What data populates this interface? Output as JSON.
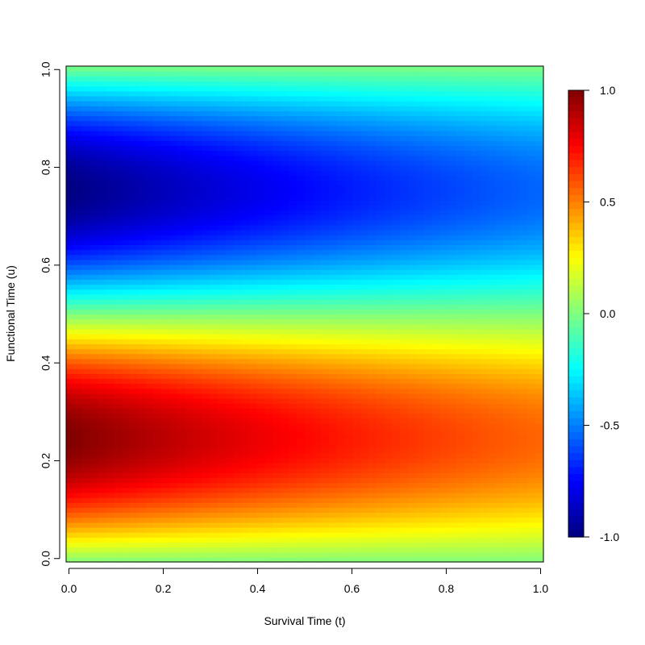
{
  "chart_data": {
    "type": "heatmap",
    "title": "",
    "xlabel": "Survival Time (t)",
    "ylabel": "Functional Time (u)",
    "xlim": [
      0,
      1
    ],
    "ylim": [
      0,
      1
    ],
    "zlim": [
      -1,
      1
    ],
    "x_ticks": [
      "0.0",
      "0.2",
      "0.4",
      "0.6",
      "0.8",
      "1.0"
    ],
    "y_ticks": [
      "0.0",
      "0.2",
      "0.4",
      "0.6",
      "0.8",
      "1.0"
    ],
    "colorbar_ticks": [
      "1.0",
      "0.5",
      "0.0",
      "-0.5",
      "-1.0"
    ],
    "colorbar_values": [
      1.0,
      0.5,
      0.0,
      -0.5,
      -1.0
    ],
    "colormap": [
      "#00007F",
      "#0000FF",
      "#007FFF",
      "#00FFFF",
      "#7FFF7F",
      "#FFFF00",
      "#FF7F00",
      "#FF0000",
      "#7F0000"
    ],
    "surface": "z = sin(2*pi*u) * exp(-0.6*t)",
    "grid": false,
    "legend": "colorbar right"
  }
}
